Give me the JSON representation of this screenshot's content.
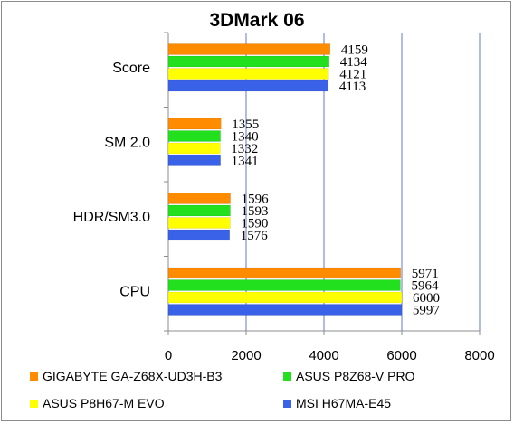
{
  "chart_data": {
    "type": "bar",
    "orientation": "horizontal",
    "title": "3DMark 06",
    "xlabel": "",
    "ylabel": "",
    "categories": [
      "Score",
      "SM 2.0",
      "HDR/SM3.0",
      "CPU"
    ],
    "xlim": [
      0,
      8000
    ],
    "xticks": [
      "0",
      "2000",
      "4000",
      "6000",
      "8000"
    ],
    "grid": true,
    "legend_position": "bottom",
    "series": [
      {
        "name": "GIGABYTE GA-Z68X-UD3H-B3",
        "color": "#ff8c00",
        "values": [
          4159,
          1355,
          1596,
          5971
        ]
      },
      {
        "name": "ASUS P8Z68-V PRO",
        "color": "#22e01e",
        "values": [
          4134,
          1340,
          1593,
          5964
        ]
      },
      {
        "name": "ASUS P8H67-M EVO",
        "color": "#ffff00",
        "values": [
          4121,
          1332,
          1590,
          6000
        ]
      },
      {
        "name": "MSI H67MA-E45",
        "color": "#3a62e8",
        "values": [
          4113,
          1341,
          1576,
          5997
        ]
      }
    ]
  }
}
